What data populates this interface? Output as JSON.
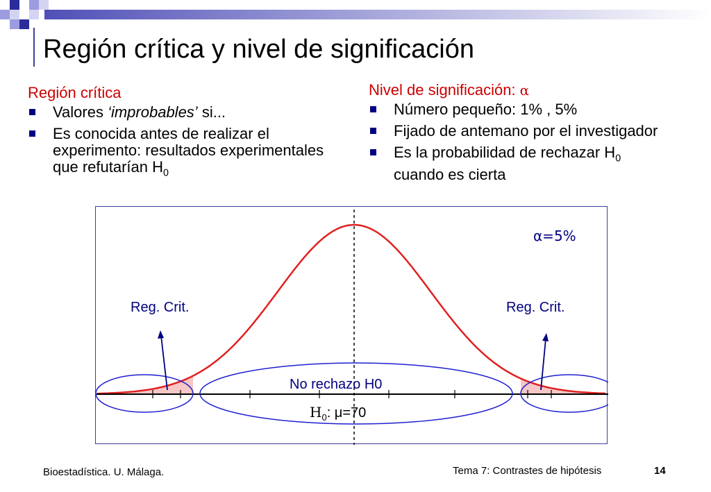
{
  "slide": {
    "title": "Región crítica y nivel de significación"
  },
  "left": {
    "heading": "Región crítica",
    "bullets": [
      {
        "pre": "Valores ",
        "em": "‘improbables’",
        "post": "  si..."
      },
      {
        "text": "Es conocida antes de realizar el experimento: resultados experimentales que refutarían H",
        "sub": "0"
      }
    ]
  },
  "right": {
    "heading": "Nivel de significación: ",
    "heading_symbol": "α",
    "bullets": [
      {
        "text": "Número pequeño: 1% , 5%"
      },
      {
        "text": "Fijado de antemano por el investigador"
      },
      {
        "text": "Es la probabilidad de rechazar H",
        "sub": "0",
        "post": " cuando es cierta"
      }
    ]
  },
  "figure": {
    "alpha_label": "α=5%",
    "reg_crit_left": "Reg. Crit.",
    "reg_crit_right": "Reg. Crit.",
    "no_reject": "No rechazo H0",
    "h0_prefix": "H",
    "h0_sub": "0",
    "h0_rest": ": μ=70",
    "colors": {
      "curve": "#e02020",
      "ellipse": "#1f1fd0",
      "arrow": "#000080",
      "text": "#000080",
      "tail_fill": "#f7c6c6"
    }
  },
  "footer": {
    "left": "Bioestadística. U. Málaga.",
    "right": "Tema 7: Contrastes de hipótesis",
    "page": "14"
  }
}
